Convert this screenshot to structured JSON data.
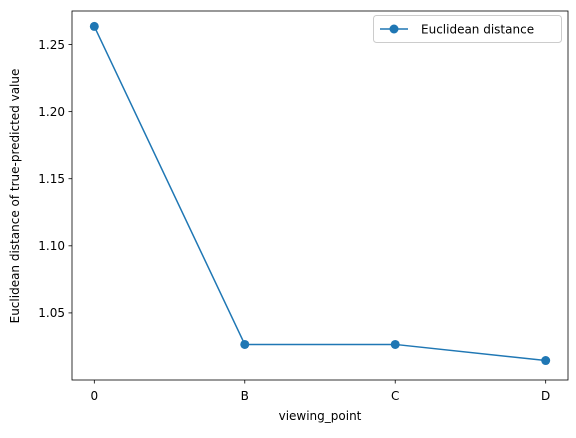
{
  "chart_data": {
    "type": "line",
    "categories": [
      "0",
      "B",
      "C",
      "D"
    ],
    "series": [
      {
        "name": "Euclidean distance",
        "values": [
          1.2635,
          1.0265,
          1.0265,
          1.0145
        ],
        "color": "#1f77b4",
        "marker": "circle"
      }
    ],
    "xlabel": "viewing_point",
    "ylabel": "Euclidean distance of true-predicted value",
    "ylim": [
      1.0,
      1.275
    ],
    "yticks": [
      1.05,
      1.1,
      1.15,
      1.2,
      1.25
    ],
    "ytick_labels": [
      "1.05",
      "1.10",
      "1.15",
      "1.20",
      "1.25"
    ],
    "grid": false,
    "legend_position": "top-right"
  }
}
